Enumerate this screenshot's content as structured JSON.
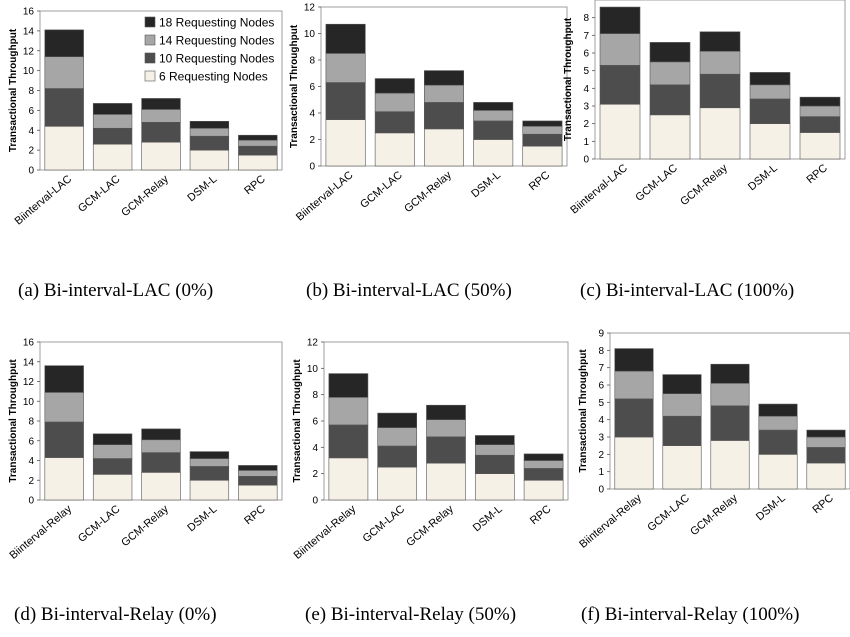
{
  "series_colors": [
    "#f6f1e6",
    "#4d4d4d",
    "#a6a6a6",
    "#262626"
  ],
  "chart_data": [
    {
      "type": "bar",
      "stacked": true,
      "caption": "(a) Bi-interval-LAC (0%)",
      "ylabel": "Transactional Throughput",
      "ylim": [
        0,
        16
      ],
      "yticks": [
        0,
        2,
        4,
        6,
        8,
        10,
        12,
        14,
        16
      ],
      "categories": [
        "Biinterval-LAC",
        "GCM-LAC",
        "GCM-Relay",
        "DSM-L",
        "RPC"
      ],
      "legend": "top-right",
      "grid": false,
      "series": [
        {
          "name": "6 Requesting Nodes",
          "values": [
            4.4,
            2.6,
            2.8,
            2.0,
            1.5
          ]
        },
        {
          "name": "10 Requesting Nodes",
          "values": [
            3.8,
            1.6,
            2.0,
            1.4,
            0.9
          ]
        },
        {
          "name": "14 Requesting Nodes",
          "values": [
            3.2,
            1.4,
            1.3,
            0.8,
            0.6
          ]
        },
        {
          "name": "18 Requesting Nodes",
          "values": [
            2.7,
            1.1,
            1.1,
            0.7,
            0.5
          ]
        }
      ]
    },
    {
      "type": "bar",
      "stacked": true,
      "caption": "(b) Bi-interval-LAC (50%)",
      "ylabel": "Transactional Throughput",
      "ylim": [
        0,
        12
      ],
      "yticks": [
        0,
        2,
        4,
        6,
        8,
        10,
        12
      ],
      "categories": [
        "Biinterval-LAC",
        "GCM-LAC",
        "GCM-Relay",
        "DSM-L",
        "RPC"
      ],
      "legend": "none",
      "grid": false,
      "series": [
        {
          "name": "6 Requesting Nodes",
          "values": [
            3.5,
            2.5,
            2.8,
            2.0,
            1.5
          ]
        },
        {
          "name": "10 Requesting Nodes",
          "values": [
            2.8,
            1.6,
            2.0,
            1.4,
            0.9
          ]
        },
        {
          "name": "14 Requesting Nodes",
          "values": [
            2.2,
            1.4,
            1.3,
            0.8,
            0.6
          ]
        },
        {
          "name": "18 Requesting Nodes",
          "values": [
            2.2,
            1.1,
            1.1,
            0.6,
            0.4
          ]
        }
      ]
    },
    {
      "type": "bar",
      "stacked": true,
      "caption": "(c) Bi-interval-LAC (100%)",
      "ylabel": "Transactional Throughput",
      "ylim": [
        0,
        9
      ],
      "yticks": [
        0,
        1,
        2,
        3,
        4,
        5,
        6,
        7,
        8
      ],
      "categories": [
        "Biinterval-LAC",
        "GCM-LAC",
        "GCM-Relay",
        "DSM-L",
        "RPC"
      ],
      "legend": "none",
      "grid": false,
      "series": [
        {
          "name": "6 Requesting Nodes",
          "values": [
            3.1,
            2.5,
            2.9,
            2.0,
            1.5
          ]
        },
        {
          "name": "10 Requesting Nodes",
          "values": [
            2.2,
            1.7,
            1.9,
            1.4,
            0.9
          ]
        },
        {
          "name": "14 Requesting Nodes",
          "values": [
            1.8,
            1.3,
            1.3,
            0.8,
            0.6
          ]
        },
        {
          "name": "18 Requesting Nodes",
          "values": [
            1.5,
            1.1,
            1.1,
            0.7,
            0.5
          ]
        }
      ]
    },
    {
      "type": "bar",
      "stacked": true,
      "caption": "(d) Bi-interval-Relay (0%)",
      "ylabel": "Transactional Throughput",
      "ylim": [
        0,
        16
      ],
      "yticks": [
        0,
        2,
        4,
        6,
        8,
        10,
        12,
        14,
        16
      ],
      "categories": [
        "Biinterval-Relay",
        "GCM-LAC",
        "GCM-Relay",
        "DSM-L",
        "RPC"
      ],
      "legend": "none",
      "grid": false,
      "series": [
        {
          "name": "6 Requesting Nodes",
          "values": [
            4.3,
            2.6,
            2.8,
            2.0,
            1.5
          ]
        },
        {
          "name": "10 Requesting Nodes",
          "values": [
            3.6,
            1.6,
            2.0,
            1.4,
            0.9
          ]
        },
        {
          "name": "14 Requesting Nodes",
          "values": [
            3.0,
            1.4,
            1.3,
            0.8,
            0.6
          ]
        },
        {
          "name": "18 Requesting Nodes",
          "values": [
            2.7,
            1.1,
            1.1,
            0.7,
            0.5
          ]
        }
      ]
    },
    {
      "type": "bar",
      "stacked": true,
      "caption": "(e) Bi-interval-Relay (50%)",
      "ylabel": "Transactional Throughput",
      "ylim": [
        0,
        12
      ],
      "yticks": [
        0,
        2,
        4,
        6,
        8,
        10,
        12
      ],
      "categories": [
        "Biinterval-Relay",
        "GCM-LAC",
        "GCM-Relay",
        "DSM-L",
        "RPC"
      ],
      "legend": "none",
      "grid": false,
      "series": [
        {
          "name": "6 Requesting Nodes",
          "values": [
            3.2,
            2.5,
            2.8,
            2.0,
            1.5
          ]
        },
        {
          "name": "10 Requesting Nodes",
          "values": [
            2.5,
            1.6,
            2.0,
            1.4,
            0.9
          ]
        },
        {
          "name": "14 Requesting Nodes",
          "values": [
            2.1,
            1.4,
            1.3,
            0.8,
            0.6
          ]
        },
        {
          "name": "18 Requesting Nodes",
          "values": [
            1.8,
            1.1,
            1.1,
            0.7,
            0.5
          ]
        }
      ]
    },
    {
      "type": "bar",
      "stacked": true,
      "caption": "(f) Bi-interval-Relay (100%)",
      "ylabel": "Transactional Throughput",
      "ylim": [
        0,
        9
      ],
      "yticks": [
        0,
        1,
        2,
        3,
        4,
        5,
        6,
        7,
        8,
        9
      ],
      "categories": [
        "Biinterval-Relay",
        "GCM-LAC",
        "GCM-Relay",
        "DSM-L",
        "RPC"
      ],
      "legend": "none",
      "grid": false,
      "series": [
        {
          "name": "6 Requesting Nodes",
          "values": [
            3.0,
            2.5,
            2.8,
            2.0,
            1.5
          ]
        },
        {
          "name": "10 Requesting Nodes",
          "values": [
            2.2,
            1.7,
            2.0,
            1.4,
            0.9
          ]
        },
        {
          "name": "14 Requesting Nodes",
          "values": [
            1.6,
            1.3,
            1.3,
            0.8,
            0.6
          ]
        },
        {
          "name": "18 Requesting Nodes",
          "values": [
            1.3,
            1.1,
            1.1,
            0.7,
            0.4
          ]
        }
      ]
    }
  ]
}
